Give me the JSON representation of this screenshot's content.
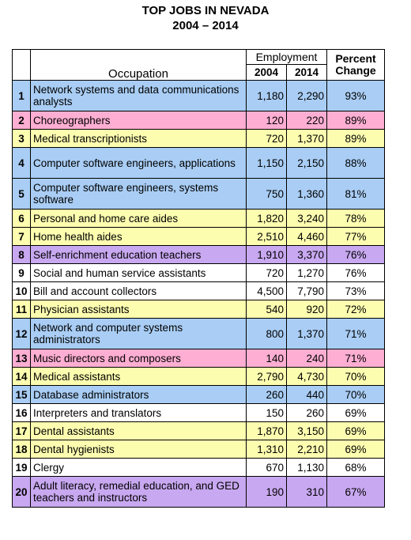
{
  "title": "TOP JOBS IN NEVADA",
  "subtitle": "2004 – 2014",
  "headers": {
    "occupation": "Occupation",
    "employment": "Employment",
    "year1": "2004",
    "year2": "2014",
    "percent_change": "Percent Change"
  },
  "row_colors": {
    "blue": "#a9cdf4",
    "pink": "#fdaed2",
    "yellow": "#fdfdb0",
    "purple": "#c8a8f0",
    "white": "#ffffff"
  },
  "rows": [
    {
      "rank": "1",
      "occupation": "Network systems and data communications analysts",
      "y2004": "1,180",
      "y2014": "2,290",
      "change": "93%",
      "color": "blue"
    },
    {
      "rank": "2",
      "occupation": "Choreographers",
      "y2004": "120",
      "y2014": "220",
      "change": "89%",
      "color": "pink"
    },
    {
      "rank": "3",
      "occupation": "Medical transcriptionists",
      "y2004": "720",
      "y2014": "1,370",
      "change": "89%",
      "color": "yellow"
    },
    {
      "rank": "4",
      "occupation": "Computer software engineers, applications",
      "y2004": "1,150",
      "y2014": "2,150",
      "change": "88%",
      "color": "blue"
    },
    {
      "rank": "5",
      "occupation": "Computer software engineers, systems software",
      "y2004": "750",
      "y2014": "1,360",
      "change": "81%",
      "color": "blue"
    },
    {
      "rank": "6",
      "occupation": "Personal and home care aides",
      "y2004": "1,820",
      "y2014": "3,240",
      "change": "78%",
      "color": "yellow"
    },
    {
      "rank": "7",
      "occupation": "Home health aides",
      "y2004": "2,510",
      "y2014": "4,460",
      "change": "77%",
      "color": "yellow"
    },
    {
      "rank": "8",
      "occupation": "Self-enrichment education teachers",
      "y2004": "1,910",
      "y2014": "3,370",
      "change": "76%",
      "color": "purple"
    },
    {
      "rank": "9",
      "occupation": "Social and human service assistants",
      "y2004": "720",
      "y2014": "1,270",
      "change": "76%",
      "color": "white"
    },
    {
      "rank": "10",
      "occupation": "Bill and account collectors",
      "y2004": "4,500",
      "y2014": "7,790",
      "change": "73%",
      "color": "white"
    },
    {
      "rank": "11",
      "occupation": "Physician assistants",
      "y2004": "540",
      "y2014": "920",
      "change": "72%",
      "color": "yellow"
    },
    {
      "rank": "12",
      "occupation": "Network and computer systems administrators",
      "y2004": "800",
      "y2014": "1,370",
      "change": "71%",
      "color": "blue"
    },
    {
      "rank": "13",
      "occupation": "Music directors and composers",
      "y2004": "140",
      "y2014": "240",
      "change": "71%",
      "color": "pink"
    },
    {
      "rank": "14",
      "occupation": "Medical assistants",
      "y2004": "2,790",
      "y2014": "4,730",
      "change": "70%",
      "color": "yellow"
    },
    {
      "rank": "15",
      "occupation": "Database administrators",
      "y2004": "260",
      "y2014": "440",
      "change": "70%",
      "color": "blue"
    },
    {
      "rank": "16",
      "occupation": "Interpreters and translators",
      "y2004": "150",
      "y2014": "260",
      "change": "69%",
      "color": "white"
    },
    {
      "rank": "17",
      "occupation": "Dental assistants",
      "y2004": "1,870",
      "y2014": "3,150",
      "change": "69%",
      "color": "yellow"
    },
    {
      "rank": "18",
      "occupation": "Dental hygienists",
      "y2004": "1,310",
      "y2014": "2,210",
      "change": "69%",
      "color": "yellow"
    },
    {
      "rank": "19",
      "occupation": "Clergy",
      "y2004": "670",
      "y2014": "1,130",
      "change": "68%",
      "color": "white"
    },
    {
      "rank": "20",
      "occupation": "Adult literacy, remedial education, and GED teachers and instructors",
      "y2004": "190",
      "y2014": "310",
      "change": "67%",
      "color": "purple"
    }
  ]
}
